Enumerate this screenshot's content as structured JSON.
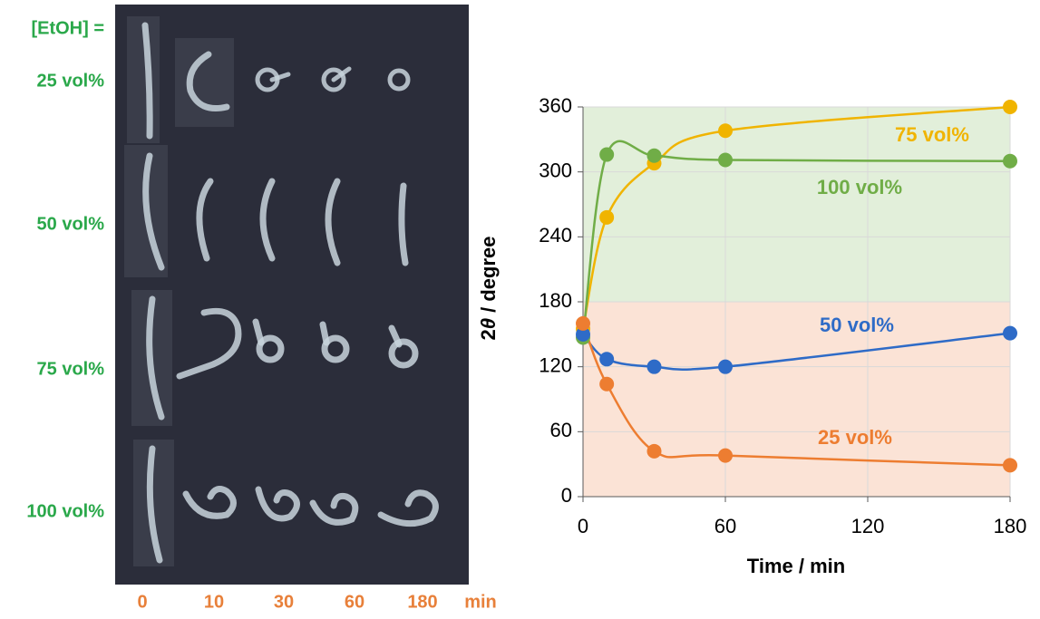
{
  "photo_panel": {
    "header": "[EtOH] =",
    "rows": [
      "25 vol%",
      "50 vol%",
      "75 vol%",
      "100 vol%"
    ],
    "columns": [
      "0",
      "10",
      "30",
      "60",
      "180"
    ],
    "unit": "min"
  },
  "chart_data": {
    "type": "line",
    "x_label": "Time / min",
    "y_label_prefix": "2",
    "y_label_symbol": "θ",
    "y_label_suffix": " / degree",
    "x": [
      0,
      10,
      30,
      60,
      180
    ],
    "series": [
      {
        "name": "75 vol%",
        "color": "#f0b400",
        "values": [
          155,
          258,
          308,
          338,
          360
        ]
      },
      {
        "name": "100 vol%",
        "color": "#70ad47",
        "values": [
          147,
          316,
          315,
          311,
          310
        ]
      },
      {
        "name": "50 vol%",
        "color": "#2e6bc7",
        "values": [
          150,
          127,
          120,
          120,
          151
        ]
      },
      {
        "name": "25 vol%",
        "color": "#ed7d31",
        "values": [
          160,
          104,
          42,
          38,
          29
        ]
      }
    ],
    "bands": [
      {
        "from": 180,
        "to": 360,
        "color": "#e2efda"
      },
      {
        "from": 0,
        "to": 180,
        "color": "#fbe3d6"
      }
    ],
    "xlim": [
      0,
      180
    ],
    "xticks": [
      0,
      60,
      120,
      180
    ],
    "ylim": [
      0,
      360
    ],
    "yticks": [
      0,
      60,
      120,
      180,
      240,
      300,
      360
    ],
    "grid": true
  }
}
